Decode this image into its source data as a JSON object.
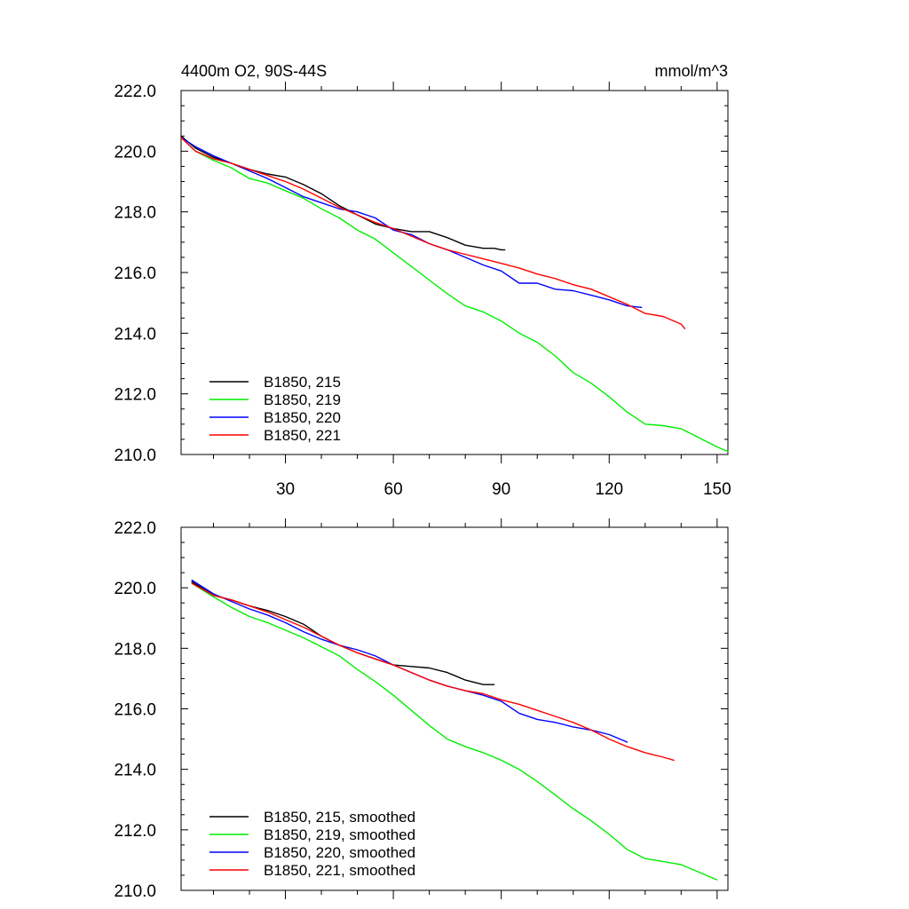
{
  "chart_data": [
    {
      "type": "line",
      "title": "4400m O2, 90S-44S",
      "units": "mmol/m^3",
      "xlabel": "",
      "ylabel": "",
      "xlim": [
        1,
        153
      ],
      "ylim": [
        210,
        222
      ],
      "x_ticks": [
        30,
        60,
        90,
        120,
        150
      ],
      "y_ticks": [
        "222.0",
        "220.0",
        "218.0",
        "216.0",
        "214.0",
        "212.0",
        "210.0"
      ],
      "grid": false,
      "legend_position": "bottom-left",
      "series": [
        {
          "name": "B1850, 215",
          "color": "#000000",
          "x": [
            1,
            5,
            10,
            15,
            20,
            25,
            30,
            35,
            40,
            45,
            50,
            55,
            60,
            65,
            70,
            75,
            80,
            85,
            88,
            90,
            91
          ],
          "y": [
            220.5,
            220.1,
            219.8,
            219.6,
            219.4,
            219.25,
            219.15,
            218.9,
            218.6,
            218.2,
            217.9,
            217.6,
            217.45,
            217.35,
            217.35,
            217.15,
            216.9,
            216.8,
            216.8,
            216.75,
            216.75
          ]
        },
        {
          "name": "B1850, 219",
          "color": "#00ee00",
          "x": [
            1,
            5,
            10,
            15,
            20,
            25,
            30,
            35,
            40,
            45,
            50,
            55,
            60,
            65,
            70,
            75,
            80,
            85,
            90,
            95,
            100,
            105,
            110,
            115,
            120,
            125,
            130,
            135,
            140,
            145,
            150,
            153
          ],
          "y": [
            220.45,
            220.0,
            219.7,
            219.45,
            219.1,
            218.95,
            218.7,
            218.45,
            218.1,
            217.8,
            217.4,
            217.1,
            216.65,
            216.2,
            215.75,
            215.3,
            214.9,
            214.7,
            214.4,
            214.0,
            213.7,
            213.25,
            212.7,
            212.35,
            211.9,
            211.4,
            211.0,
            210.95,
            210.85,
            210.55,
            210.25,
            210.1
          ]
        },
        {
          "name": "B1850, 220",
          "color": "#0000ff",
          "x": [
            1,
            5,
            10,
            15,
            20,
            25,
            30,
            35,
            40,
            45,
            50,
            55,
            60,
            65,
            70,
            75,
            80,
            85,
            90,
            95,
            100,
            105,
            110,
            115,
            120,
            125,
            129
          ],
          "y": [
            220.45,
            220.15,
            219.85,
            219.6,
            219.35,
            219.1,
            218.8,
            218.5,
            218.3,
            218.1,
            218.0,
            217.8,
            217.4,
            217.25,
            216.95,
            216.75,
            216.5,
            216.25,
            216.05,
            215.65,
            215.65,
            215.45,
            215.4,
            215.25,
            215.1,
            214.9,
            214.85
          ]
        },
        {
          "name": "B1850, 221",
          "color": "#ff0000",
          "x": [
            1,
            5,
            10,
            15,
            20,
            25,
            30,
            35,
            40,
            45,
            50,
            55,
            60,
            65,
            70,
            75,
            80,
            85,
            90,
            95,
            100,
            105,
            110,
            115,
            120,
            125,
            130,
            135,
            140,
            141
          ],
          "y": [
            220.45,
            220.0,
            219.75,
            219.6,
            219.4,
            219.2,
            219.0,
            218.75,
            218.45,
            218.15,
            217.9,
            217.65,
            217.45,
            217.2,
            216.95,
            216.75,
            216.6,
            216.45,
            216.3,
            216.15,
            215.95,
            215.8,
            215.6,
            215.45,
            215.2,
            214.95,
            214.65,
            214.55,
            214.3,
            214.15
          ]
        }
      ]
    },
    {
      "type": "line",
      "title": "",
      "xlabel": "",
      "ylabel": "",
      "xlim": [
        1,
        153
      ],
      "ylim": [
        210,
        222
      ],
      "x_ticks": [
        30,
        60,
        90,
        120,
        150
      ],
      "y_ticks": [
        "222.0",
        "220.0",
        "218.0",
        "216.0",
        "214.0",
        "212.0",
        "210.0"
      ],
      "grid": false,
      "legend_position": "bottom-left",
      "series": [
        {
          "name": "B1850, 215, smoothed",
          "color": "#000000",
          "x": [
            4,
            10,
            15,
            20,
            25,
            30,
            35,
            40,
            45,
            50,
            55,
            60,
            65,
            70,
            75,
            80,
            85,
            88
          ],
          "y": [
            220.2,
            219.75,
            219.6,
            219.4,
            219.25,
            219.05,
            218.8,
            218.4,
            218.1,
            217.85,
            217.65,
            217.45,
            217.4,
            217.35,
            217.2,
            216.95,
            216.8,
            216.8
          ]
        },
        {
          "name": "B1850, 219, smoothed",
          "color": "#00ee00",
          "x": [
            4,
            10,
            15,
            20,
            25,
            30,
            35,
            40,
            45,
            50,
            55,
            60,
            65,
            70,
            75,
            80,
            85,
            90,
            95,
            100,
            105,
            110,
            115,
            120,
            125,
            130,
            135,
            140,
            145,
            150
          ],
          "y": [
            220.15,
            219.7,
            219.35,
            219.05,
            218.85,
            218.6,
            218.35,
            218.05,
            217.75,
            217.3,
            216.9,
            216.45,
            215.95,
            215.45,
            215.0,
            214.75,
            214.55,
            214.3,
            214.0,
            213.6,
            213.15,
            212.7,
            212.3,
            211.85,
            211.35,
            211.05,
            210.95,
            210.85,
            210.6,
            210.35
          ]
        },
        {
          "name": "B1850, 220, smoothed",
          "color": "#0000ff",
          "x": [
            4,
            10,
            15,
            20,
            25,
            30,
            35,
            40,
            45,
            50,
            55,
            60,
            65,
            70,
            75,
            80,
            85,
            90,
            95,
            100,
            105,
            110,
            115,
            120,
            125
          ],
          "y": [
            220.25,
            219.8,
            219.55,
            219.3,
            219.1,
            218.85,
            218.55,
            218.3,
            218.1,
            217.95,
            217.75,
            217.45,
            217.2,
            216.95,
            216.75,
            216.6,
            216.45,
            216.25,
            215.85,
            215.65,
            215.55,
            215.4,
            215.3,
            215.15,
            214.9
          ]
        },
        {
          "name": "B1850, 221, smoothed",
          "color": "#ff0000",
          "x": [
            4,
            10,
            15,
            20,
            25,
            30,
            35,
            40,
            45,
            50,
            55,
            60,
            65,
            70,
            75,
            80,
            85,
            90,
            95,
            100,
            105,
            110,
            115,
            120,
            125,
            130,
            135,
            138
          ],
          "y": [
            220.15,
            219.75,
            219.6,
            219.4,
            219.2,
            218.95,
            218.7,
            218.4,
            218.1,
            217.85,
            217.65,
            217.45,
            217.2,
            216.95,
            216.75,
            216.6,
            216.5,
            216.3,
            216.15,
            215.95,
            215.75,
            215.55,
            215.3,
            215.0,
            214.75,
            214.55,
            214.4,
            214.3
          ]
        }
      ]
    }
  ]
}
